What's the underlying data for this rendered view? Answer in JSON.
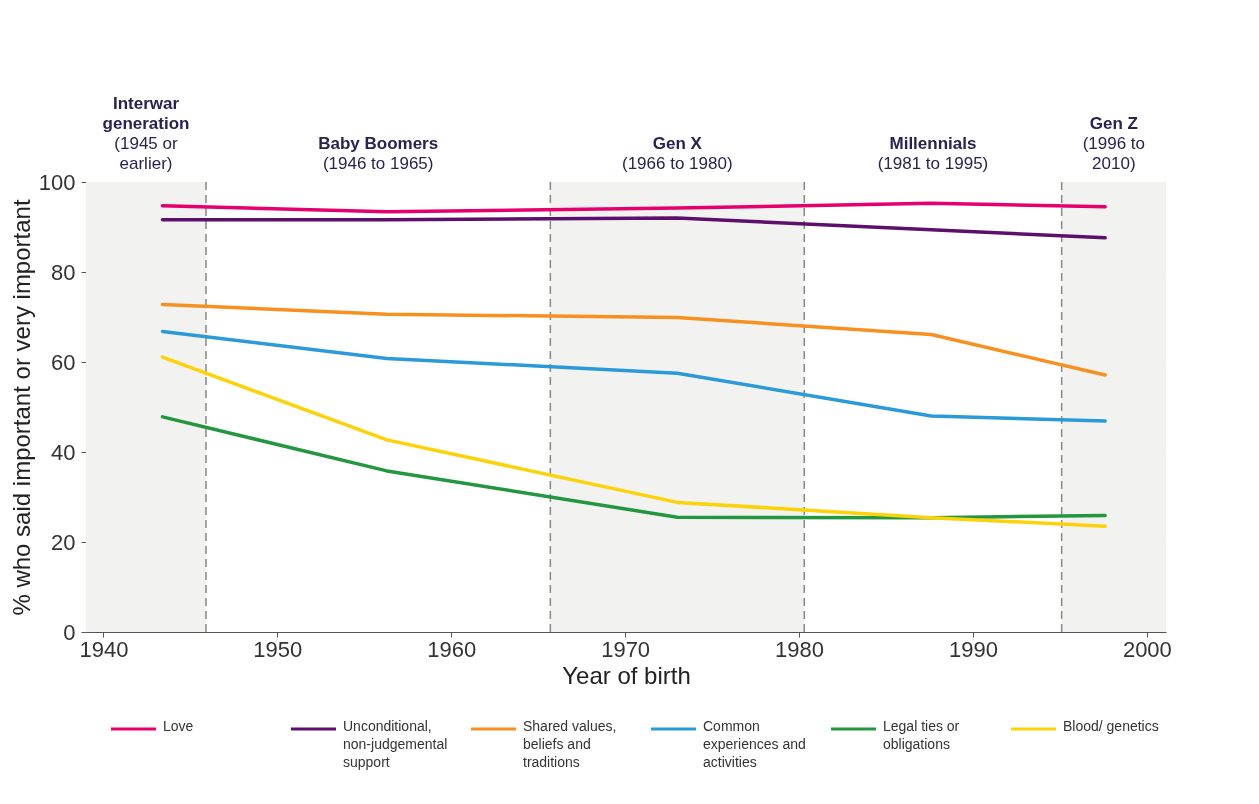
{
  "chart_data": {
    "type": "line",
    "xlabel": "Year of birth",
    "ylabel": "% who said important or very important",
    "x": [
      1943.4,
      1956.3,
      1973.0,
      1987.6,
      1997.6
    ],
    "series": [
      {
        "name": "Love",
        "color": "#e5006d",
        "values": [
          94.7,
          93.4,
          94.2,
          95.3,
          94.5
        ]
      },
      {
        "name": "Unconditional, non-judgemental support",
        "color": "#5c0f6b",
        "values": [
          91.6,
          91.6,
          92.0,
          89.4,
          87.6
        ]
      },
      {
        "name": "Shared values, beliefs and traditions",
        "color": "#f7901e",
        "values": [
          72.8,
          70.6,
          69.9,
          66.1,
          57.1
        ]
      },
      {
        "name": "Common experiences and activities",
        "color": "#2a9ad8",
        "values": [
          66.8,
          60.8,
          57.5,
          48.0,
          46.9
        ]
      },
      {
        "name": "Legal ties or obligations",
        "color": "#22973f",
        "values": [
          47.8,
          35.8,
          25.5,
          25.4,
          25.9
        ]
      },
      {
        "name": "Blood/ genetics",
        "color": "#fcd208",
        "values": [
          61.1,
          42.7,
          28.8,
          25.4,
          23.5
        ]
      }
    ],
    "xlim": [
      1939,
      2001.1
    ],
    "xticks": [
      1940,
      1950,
      1960,
      1970,
      1980,
      1990,
      2000
    ],
    "ylim": [
      0,
      100
    ],
    "yticks": [
      0,
      20,
      40,
      60,
      80,
      100
    ],
    "bands": [
      {
        "axis": "x",
        "from": 1939,
        "to": 1945.9,
        "label": "Interwar generation (1945 or earlier)",
        "color": "#f2f2f0"
      },
      {
        "axis": "x",
        "from": 1945.9,
        "to": 1965.7,
        "label": "Baby Boomers (1946 to 1965)",
        "color": "#ffffff"
      },
      {
        "axis": "x",
        "from": 1965.7,
        "to": 1980.3,
        "label": "Gen X (1966 to 1980)",
        "color": "#f2f2f0"
      },
      {
        "axis": "x",
        "from": 1980.3,
        "to": 1995.1,
        "label": "Millennials (1981 to 1995)",
        "color": "#ffffff"
      },
      {
        "axis": "x",
        "from": 1995.1,
        "to": 2001.1,
        "label": "Gen Z (1996 to 2010)",
        "color": "#f2f2f0"
      }
    ],
    "ref_lines": [
      {
        "axis": "x",
        "value": 1945.9,
        "line_style": "dashed",
        "color": "#888888"
      },
      {
        "axis": "x",
        "value": 1965.7,
        "line_style": "dashed",
        "color": "#888888"
      },
      {
        "axis": "x",
        "value": 1980.3,
        "line_style": "dashed",
        "color": "#888888"
      },
      {
        "axis": "x",
        "value": 1995.1,
        "line_style": "dashed",
        "color": "#888888"
      }
    ],
    "grid": "y",
    "legend": "bottom"
  }
}
